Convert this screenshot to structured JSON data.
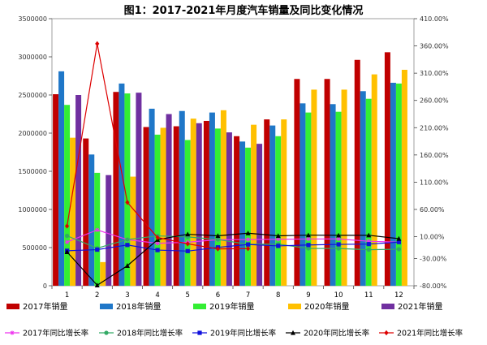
{
  "chart_data": {
    "type": "bar",
    "title": "图1：2017-2021年月度汽车销量及同比变化情况",
    "categories": [
      "1",
      "2",
      "3",
      "4",
      "5",
      "6",
      "7",
      "8",
      "9",
      "10",
      "11",
      "12"
    ],
    "ylim": [
      0,
      3500000
    ],
    "y2lim": [
      -80,
      410
    ],
    "y_ticks": [
      "0",
      "500000",
      "1000000",
      "1500000",
      "2000000",
      "2500000",
      "3000000",
      "3500000"
    ],
    "y2_ticks": [
      "-80.00%",
      "-30.00%",
      "10.00%",
      "60.00%",
      "110.00%",
      "160.00%",
      "210.00%",
      "260.00%",
      "310.00%",
      "360.00%",
      "410.00%"
    ],
    "bar_series": [
      {
        "name": "2017年销量",
        "color": "#C00000",
        "values": [
          2510000,
          1930000,
          2540000,
          2080000,
          2090000,
          2160000,
          1960000,
          2180000,
          2710000,
          2710000,
          2960000,
          3060000
        ]
      },
      {
        "name": "2018年销量",
        "color": "#1F77C8",
        "values": [
          2810000,
          1720000,
          2650000,
          2320000,
          2290000,
          2270000,
          1890000,
          2100000,
          2390000,
          2380000,
          2550000,
          2660000
        ]
      },
      {
        "name": "2019年销量",
        "color": "#33EE33",
        "values": [
          2370000,
          1480000,
          2520000,
          1980000,
          1910000,
          2060000,
          1810000,
          1960000,
          2270000,
          2280000,
          2450000,
          2650000
        ]
      },
      {
        "name": "2020年销量",
        "color": "#FFC000",
        "values": [
          1940000,
          310000,
          1430000,
          2070000,
          2190000,
          2300000,
          2110000,
          2180000,
          2570000,
          2570000,
          2770000,
          2830000
        ]
      },
      {
        "name": "2021年销量",
        "color": "#7030A0",
        "values": [
          2500000,
          1450000,
          2530000,
          2250000,
          2130000,
          2010000,
          1860000,
          null,
          null,
          null,
          null,
          null
        ]
      }
    ],
    "line_series": [
      {
        "name": "2017年同比增长率",
        "color": "#EE33EE",
        "marker": "star",
        "values": [
          0.2,
          22.4,
          4.6,
          -2.2,
          -0.1,
          4.5,
          4.8,
          5.3,
          5.7,
          5.8,
          1.6,
          -0.1
        ]
      },
      {
        "name": "2018年同比增长率",
        "color": "#33AA66",
        "marker": "circle",
        "values": [
          11.6,
          -11.1,
          4.8,
          11.5,
          9.6,
          4.8,
          -4.0,
          -3.7,
          -11.6,
          -11.7,
          -13.9,
          -13.0
        ]
      },
      {
        "name": "2019年同比增长率",
        "color": "#1010DD",
        "marker": "square",
        "values": [
          -15.8,
          -13.8,
          -5.2,
          -14.6,
          -16.4,
          -9.6,
          -4.3,
          -6.9,
          -5.2,
          -4.1,
          -3.6,
          0.1
        ]
      },
      {
        "name": "2020年同比增长率",
        "color": "#000000",
        "marker": "triangle",
        "values": [
          -18.0,
          -79.1,
          -43.3,
          4.4,
          14.5,
          11.6,
          16.4,
          11.6,
          12.8,
          12.5,
          12.6,
          6.4
        ]
      },
      {
        "name": "2021年同比增长率",
        "color": "#DD0000",
        "marker": "diamond",
        "values": [
          29.5,
          364.0,
          73.0,
          8.4,
          -3.1,
          -12.4,
          -11.9,
          null,
          null,
          null,
          null,
          null
        ]
      }
    ]
  }
}
